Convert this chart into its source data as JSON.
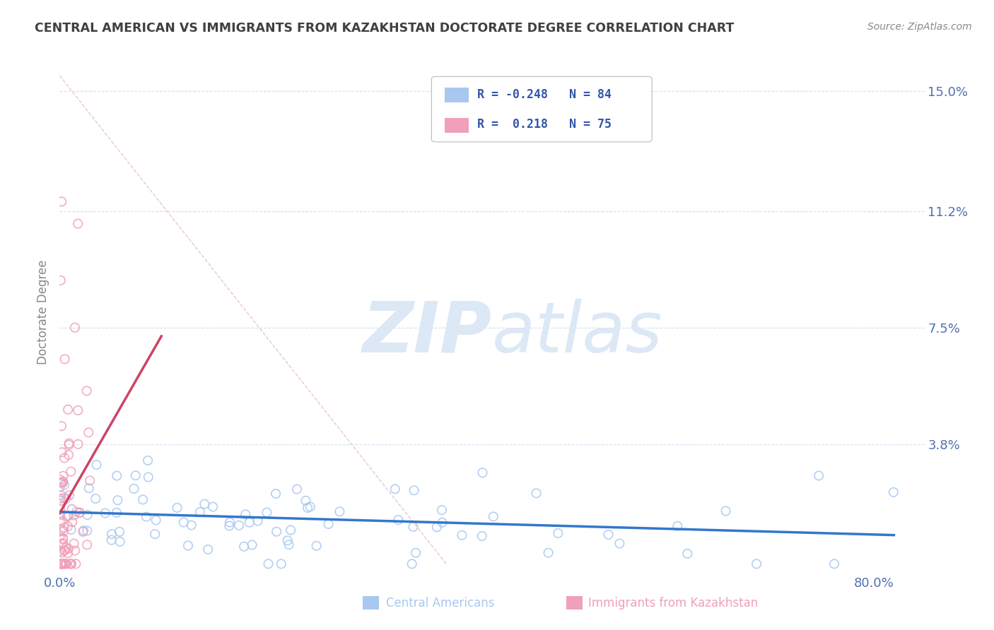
{
  "title": "CENTRAL AMERICAN VS IMMIGRANTS FROM KAZAKHSTAN DOCTORATE DEGREE CORRELATION CHART",
  "source_text": "Source: ZipAtlas.com",
  "ylabel": "Doctorate Degree",
  "xlabel": "",
  "xlim": [
    0.0,
    0.85
  ],
  "ylim": [
    -0.003,
    0.163
  ],
  "legend_entries": [
    {
      "label": "Central Americans",
      "color": "#a8c8f0",
      "R": "-0.248",
      "N": "84"
    },
    {
      "label": "Immigrants from Kazakhstan",
      "color": "#f0a0b8",
      "R": " 0.218",
      "N": "75"
    }
  ],
  "blue_color": "#a8c8f0",
  "pink_color": "#f0a0b8",
  "trendline_blue_color": "#3377cc",
  "trendline_pink_color": "#cc4466",
  "diagonal_color": "#e8c0c8",
  "watermark_zip": "ZIP",
  "watermark_atlas": "atlas",
  "watermark_color": "#dce8f5",
  "blue_R": -0.248,
  "blue_N": 84,
  "pink_R": 0.218,
  "pink_N": 75,
  "background_color": "#ffffff",
  "grid_color": "#c8d8e8",
  "title_color": "#404040",
  "tick_label_color": "#5070b0",
  "source_color": "#888888",
  "ylabel_color": "#888888"
}
